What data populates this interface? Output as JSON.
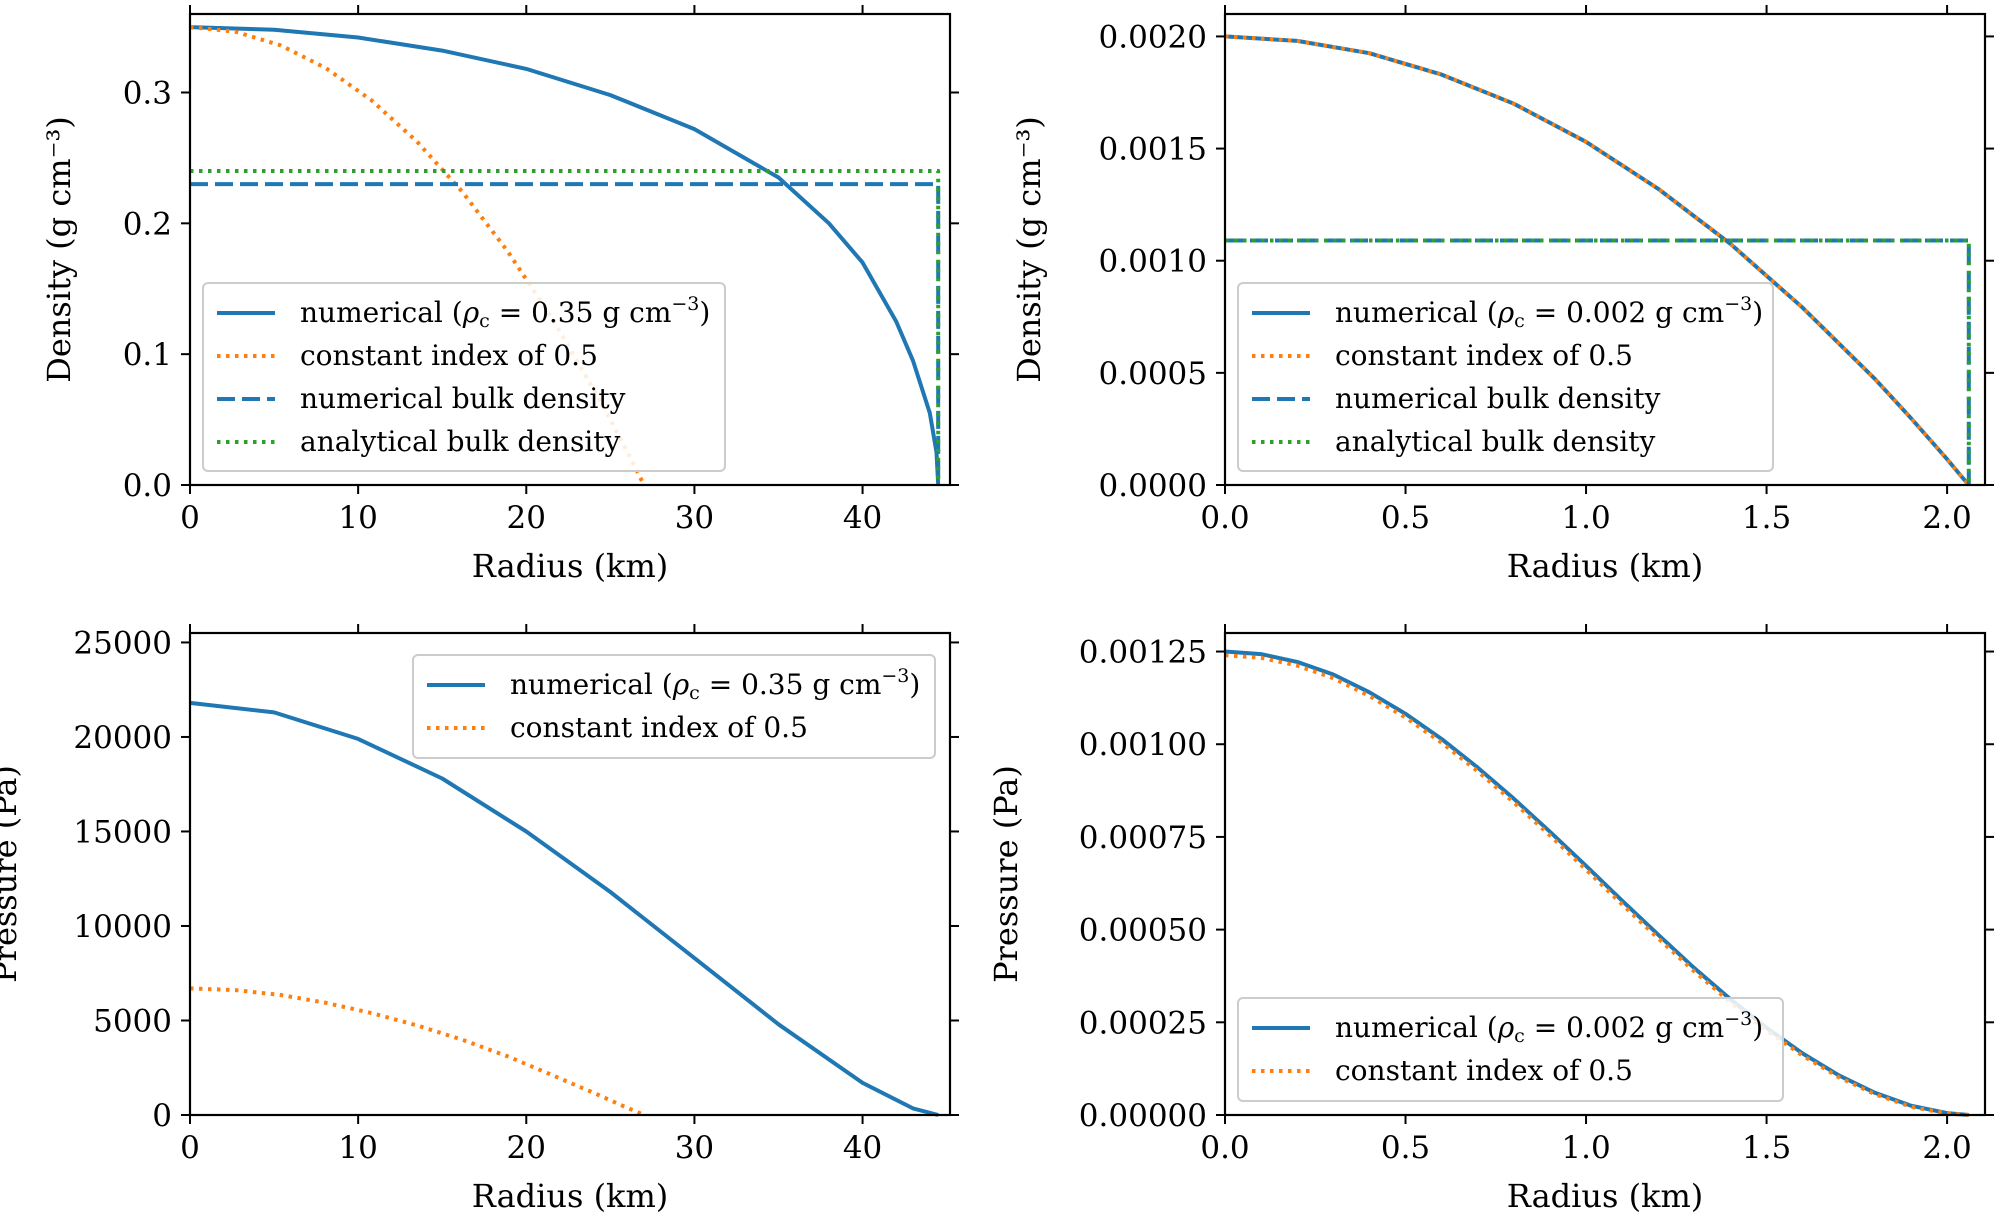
{
  "colors": {
    "blue": "#1f77b4",
    "orange": "#ff7f0e",
    "green": "#2ca02c",
    "axis": "#000000",
    "legend_border": "#cccccc"
  },
  "chart_data": [
    {
      "id": "density-large",
      "type": "line",
      "title": "",
      "xlabel": "Radius (km)",
      "ylabel": "Density (g cm⁻³)",
      "xlim": [
        0,
        45.2
      ],
      "ylim": [
        0,
        0.36
      ],
      "xticks": [
        0,
        10,
        20,
        30,
        40
      ],
      "xtick_labels": [
        "0",
        "10",
        "20",
        "30",
        "40"
      ],
      "yticks": [
        0.0,
        0.1,
        0.2,
        0.3
      ],
      "ytick_labels": [
        "0.0",
        "0.1",
        "0.2",
        "0.3"
      ],
      "grid": false,
      "legend_position": "lower-left",
      "series": [
        {
          "name": "numerical (ρc = 0.35 g cm⁻³)",
          "legend_main": "numerical (",
          "legend_rho": "ρ",
          "legend_sub": "c",
          "legend_eq": " = 0.35 g cm",
          "legend_sup": "−3",
          "legend_close": ")",
          "style": "solid",
          "color": "#1f77b4",
          "x": [
            0,
            5,
            10,
            15,
            20,
            25,
            30,
            35,
            38,
            40,
            42,
            43,
            44,
            44.4,
            44.5
          ],
          "y": [
            0.35,
            0.348,
            0.342,
            0.332,
            0.318,
            0.298,
            0.272,
            0.235,
            0.2,
            0.17,
            0.125,
            0.095,
            0.055,
            0.025,
            0.0
          ]
        },
        {
          "name": "constant index of 0.5",
          "legend_main": "constant index of 0.5",
          "style": "dotted",
          "color": "#ff7f0e",
          "x": [
            0,
            2.7,
            5.4,
            8.1,
            10.8,
            13.5,
            16.2,
            18.9,
            21.6,
            24.3,
            25.65,
            26.46,
            27.0
          ],
          "y": [
            0.35,
            0.3465,
            0.336,
            0.3185,
            0.294,
            0.2625,
            0.224,
            0.1785,
            0.126,
            0.0665,
            0.03413,
            0.01381,
            0.0
          ]
        },
        {
          "name": "numerical bulk density",
          "legend_main": "numerical bulk density",
          "style": "dashed",
          "color": "#1f77b4",
          "x": [
            0,
            44.5,
            44.5
          ],
          "y": [
            0.23,
            0.23,
            0.0
          ]
        },
        {
          "name": "analytical bulk density",
          "legend_main": "analytical bulk density",
          "style": "dotted",
          "color": "#2ca02c",
          "x": [
            0,
            44.5,
            44.5
          ],
          "y": [
            0.24,
            0.24,
            0.0
          ]
        }
      ]
    },
    {
      "id": "density-small",
      "type": "line",
      "title": "",
      "xlabel": "Radius (km)",
      "ylabel": "Density (g cm⁻³)",
      "xlim": [
        0,
        2.105
      ],
      "ylim": [
        0,
        0.0021
      ],
      "xticks": [
        0.0,
        0.5,
        1.0,
        1.5,
        2.0
      ],
      "xtick_labels": [
        "0.0",
        "0.5",
        "1.0",
        "1.5",
        "2.0"
      ],
      "yticks": [
        0.0,
        0.0005,
        0.001,
        0.0015,
        0.002
      ],
      "ytick_labels": [
        "0.0000",
        "0.0005",
        "0.0010",
        "0.0015",
        "0.0020"
      ],
      "grid": false,
      "legend_position": "lower-left",
      "series": [
        {
          "name": "numerical (ρc = 0.002 g cm⁻³)",
          "legend_main": "numerical (",
          "legend_rho": "ρ",
          "legend_sub": "c",
          "legend_eq": " = 0.002 g cm",
          "legend_sup": "−3",
          "legend_close": ")",
          "style": "solid",
          "color": "#1f77b4",
          "x": [
            0,
            0.2,
            0.4,
            0.6,
            0.8,
            1.0,
            1.2,
            1.4,
            1.6,
            1.8,
            1.9,
            2.0,
            2.04,
            2.06
          ],
          "y": [
            0.002,
            0.00198,
            0.001925,
            0.00183,
            0.0017,
            0.00153,
            0.00132,
            0.001075,
            0.00079,
            0.000473,
            0.000298,
            0.000115,
            3.8e-05,
            0.0
          ]
        },
        {
          "name": "constant index of 0.5",
          "legend_main": "constant index of 0.5",
          "style": "dotted",
          "color": "#ff7f0e",
          "x": [
            0,
            0.2,
            0.4,
            0.6,
            0.8,
            1.0,
            1.2,
            1.4,
            1.6,
            1.8,
            1.9,
            2.0,
            2.04,
            2.06
          ],
          "y": [
            0.002,
            0.00198,
            0.001925,
            0.00183,
            0.0017,
            0.00153,
            0.00132,
            0.001075,
            0.00079,
            0.000473,
            0.000298,
            0.000115,
            3.8e-05,
            0.0
          ]
        },
        {
          "name": "numerical bulk density",
          "legend_main": "numerical bulk density",
          "style": "dashed",
          "color": "#1f77b4",
          "x": [
            0,
            2.06,
            2.06
          ],
          "y": [
            0.00109,
            0.00109,
            0.0
          ]
        },
        {
          "name": "analytical bulk density",
          "legend_main": "analytical bulk density",
          "style": "dotted",
          "color": "#2ca02c",
          "x": [
            0,
            2.06,
            2.06
          ],
          "y": [
            0.00109,
            0.00109,
            0.0
          ]
        }
      ]
    },
    {
      "id": "pressure-large",
      "type": "line",
      "title": "",
      "xlabel": "Radius (km)",
      "ylabel": "Pressure (Pa)",
      "xlim": [
        0,
        45.2
      ],
      "ylim": [
        0,
        25500
      ],
      "xticks": [
        0,
        10,
        20,
        30,
        40
      ],
      "xtick_labels": [
        "0",
        "10",
        "20",
        "30",
        "40"
      ],
      "yticks": [
        0,
        5000,
        10000,
        15000,
        20000,
        25000
      ],
      "ytick_labels": [
        "0",
        "5000",
        "10000",
        "15000",
        "20000",
        "25000"
      ],
      "grid": false,
      "legend_position": "upper-right",
      "series": [
        {
          "name": "numerical (ρc = 0.35 g cm⁻³)",
          "legend_main": "numerical (",
          "legend_rho": "ρ",
          "legend_sub": "c",
          "legend_eq": " = 0.35 g cm",
          "legend_sup": "−3",
          "legend_close": ")",
          "style": "solid",
          "color": "#1f77b4",
          "x": [
            0,
            5,
            10,
            15,
            20,
            25,
            30,
            35,
            40,
            43,
            44.5
          ],
          "y": [
            21800,
            21300,
            19900,
            17800,
            15000,
            11800,
            8300,
            4800,
            1700,
            350,
            0
          ]
        },
        {
          "name": "constant index of 0.5",
          "legend_main": "constant index of 0.5",
          "style": "dotted",
          "color": "#ff7f0e",
          "x": [
            0,
            2.7,
            5.4,
            8.1,
            10.8,
            13.5,
            16.2,
            18.9,
            21.6,
            24.3,
            25.65,
            27.0
          ],
          "y": [
            6700,
            6610,
            6350,
            5930,
            5390,
            4740,
            3980,
            3100,
            2090,
            1060,
            520,
            0
          ]
        }
      ]
    },
    {
      "id": "pressure-small",
      "type": "line",
      "title": "",
      "xlabel": "Radius (km)",
      "ylabel": "Pressure (Pa)",
      "xlim": [
        0,
        2.105
      ],
      "ylim": [
        0,
        0.0013
      ],
      "xticks": [
        0.0,
        0.5,
        1.0,
        1.5,
        2.0
      ],
      "xtick_labels": [
        "0.0",
        "0.5",
        "1.0",
        "1.5",
        "2.0"
      ],
      "yticks": [
        0,
        0.00025,
        0.0005,
        0.00075,
        0.001,
        0.00125
      ],
      "ytick_labels": [
        "0.00000",
        "0.00025",
        "0.00050",
        "0.00075",
        "0.00100",
        "0.00125"
      ],
      "grid": false,
      "legend_position": "lower-left",
      "series": [
        {
          "name": "numerical (ρc = 0.002 g cm⁻³)",
          "legend_main": "numerical (",
          "legend_rho": "ρ",
          "legend_sub": "c",
          "legend_eq": " = 0.002 g cm",
          "legend_sup": "−3",
          "legend_close": ")",
          "style": "solid",
          "color": "#1f77b4",
          "x": [
            0,
            0.1,
            0.2,
            0.3,
            0.4,
            0.5,
            0.6,
            0.7,
            0.8,
            0.9,
            1.0,
            1.1,
            1.2,
            1.3,
            1.4,
            1.5,
            1.6,
            1.7,
            1.8,
            1.9,
            2.0,
            2.06
          ],
          "y": [
            0.00125,
            0.001243,
            0.001222,
            0.001188,
            0.00114,
            0.001082,
            0.001014,
            0.000937,
            0.000853,
            0.000764,
            0.000672,
            0.000578,
            0.000486,
            0.000396,
            0.000312,
            0.000235,
            0.000166,
            0.000107,
            6e-05,
            2.5e-05,
            5e-06,
            0.0
          ]
        },
        {
          "name": "constant index of 0.5",
          "legend_main": "constant index of 0.5",
          "style": "dotted",
          "color": "#ff7f0e",
          "x": [
            0,
            0.1,
            0.2,
            0.3,
            0.4,
            0.5,
            0.6,
            0.7,
            0.8,
            0.9,
            1.0,
            1.1,
            1.2,
            1.3,
            1.4,
            1.5,
            1.6,
            1.7,
            1.8,
            1.9,
            2.0,
            2.06
          ],
          "y": [
            0.00124,
            0.001233,
            0.001212,
            0.001178,
            0.00113,
            0.001072,
            0.001004,
            0.000927,
            0.000843,
            0.000754,
            0.000662,
            0.000568,
            0.000476,
            0.000387,
            0.000304,
            0.000228,
            0.00016,
            0.000102,
            5.6e-05,
            2.2e-05,
            4e-06,
            0.0
          ]
        }
      ]
    }
  ]
}
